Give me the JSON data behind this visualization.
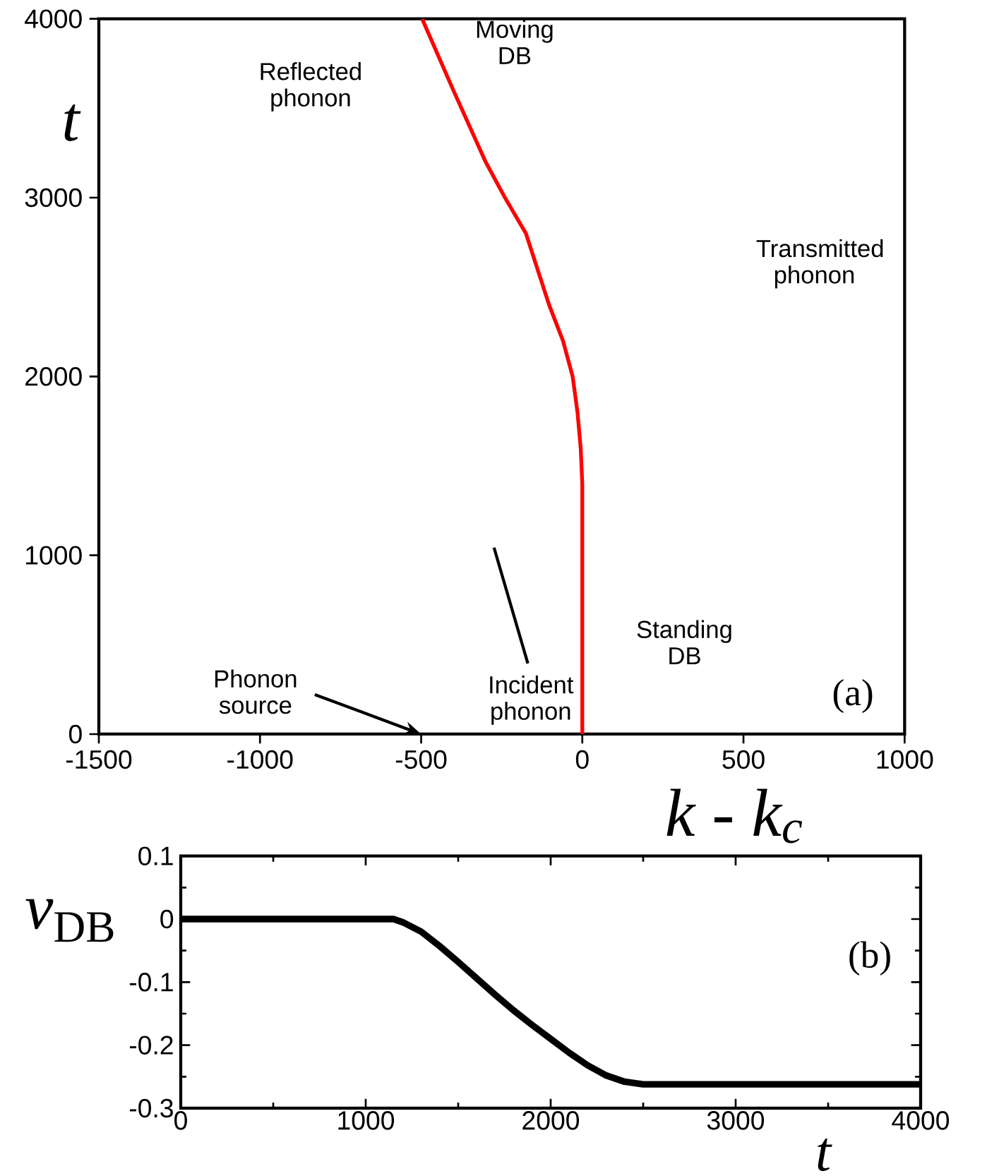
{
  "chart_data": [
    {
      "type": "line",
      "xlabel": "k - k$_{c}$",
      "ylabel": "t",
      "color": "#ff0000",
      "x": [
        0,
        0,
        -5,
        -15,
        -30,
        -60,
        -103,
        -175,
        -240,
        -300,
        -400,
        -497
      ],
      "values": [
        0,
        1400,
        1600,
        1800,
        2000,
        2200,
        2400,
        2800,
        3000,
        3200,
        3600,
        4000
      ],
      "xlim": [
        -1500,
        1000
      ],
      "ylim": [
        0,
        4000
      ],
      "xticks": [
        -1500,
        -1000,
        -500,
        0,
        500,
        1000
      ],
      "yticks": [
        0,
        1000,
        2000,
        3000,
        4000
      ],
      "annotations": [
        "Moving DB",
        "Reflected phonon",
        "Transmitted phonon",
        "Standing DB",
        "Incident phonon",
        "Phonon source",
        "(a)"
      ]
    },
    {
      "type": "line",
      "xlabel": "t",
      "ylabel": "*v*$_{DB}$",
      "color": "#000000",
      "x": [
        0,
        500,
        1000,
        1150,
        1200,
        1300,
        1400,
        1500,
        1600,
        1700,
        1800,
        1900,
        2000,
        2100,
        2200,
        2300,
        2400,
        2500,
        3000,
        3500,
        4000
      ],
      "values": [
        0,
        0,
        0,
        0,
        -0.005,
        -0.02,
        -0.043,
        -0.068,
        -0.094,
        -0.12,
        -0.145,
        -0.168,
        -0.19,
        -0.212,
        -0.232,
        -0.248,
        -0.258,
        -0.262,
        -0.262,
        -0.262,
        -0.262
      ],
      "xlim": [
        0,
        4000
      ],
      "ylim": [
        -0.3,
        0.1
      ],
      "xticks": [
        0,
        1000,
        2000,
        3000,
        4000
      ],
      "yticks": [
        0.1,
        0,
        -0.1,
        -0.2,
        -0.3
      ],
      "annotations": [
        "(b)"
      ]
    }
  ]
}
